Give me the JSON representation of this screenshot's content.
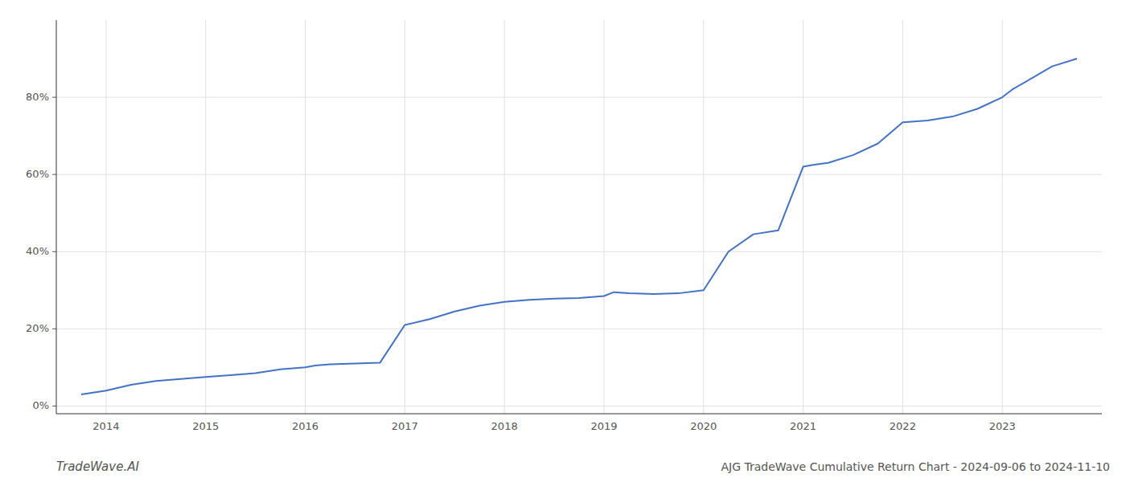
{
  "chart_data": {
    "type": "line",
    "title": "AJG TradeWave Cumulative Return Chart - 2024-09-06 to 2024-11-10",
    "annotations": [
      "TradeWave.AI"
    ],
    "x": [
      2013.75,
      2014.0,
      2014.25,
      2014.5,
      2014.75,
      2015.0,
      2015.25,
      2015.5,
      2015.75,
      2016.0,
      2016.1,
      2016.25,
      2016.5,
      2016.75,
      2017.0,
      2017.25,
      2017.5,
      2017.75,
      2018.0,
      2018.25,
      2018.5,
      2018.75,
      2019.0,
      2019.1,
      2019.25,
      2019.5,
      2019.75,
      2020.0,
      2020.25,
      2020.5,
      2020.75,
      2021.0,
      2021.1,
      2021.25,
      2021.5,
      2021.75,
      2022.0,
      2022.25,
      2022.5,
      2022.75,
      2023.0,
      2023.1,
      2023.5,
      2023.75
    ],
    "values": [
      3.0,
      4.0,
      5.5,
      6.5,
      7.0,
      7.5,
      8.0,
      8.5,
      9.5,
      10.0,
      10.5,
      10.8,
      11.0,
      11.2,
      21.0,
      22.5,
      24.5,
      26.0,
      27.0,
      27.5,
      27.8,
      28.0,
      28.5,
      29.5,
      29.2,
      29.0,
      29.2,
      30.0,
      40.0,
      44.5,
      45.5,
      62.0,
      62.5,
      63.0,
      65.0,
      68.0,
      73.5,
      74.0,
      75.0,
      77.0,
      80.0,
      82.0,
      88.0,
      90.0
    ],
    "color": "#4472c4",
    "xlim": [
      2013.5,
      2024.0
    ],
    "xticks": [
      2014,
      2015,
      2016,
      2017,
      2018,
      2019,
      2020,
      2021,
      2022,
      2023
    ],
    "ylim": [
      -2,
      100
    ],
    "yticks": [
      {
        "value": 0,
        "label": "0%"
      },
      {
        "value": 20,
        "label": "20%"
      },
      {
        "value": 40,
        "label": "40%"
      },
      {
        "value": 60,
        "label": "60%"
      },
      {
        "value": 80,
        "label": "80%"
      }
    ],
    "grid": true
  }
}
